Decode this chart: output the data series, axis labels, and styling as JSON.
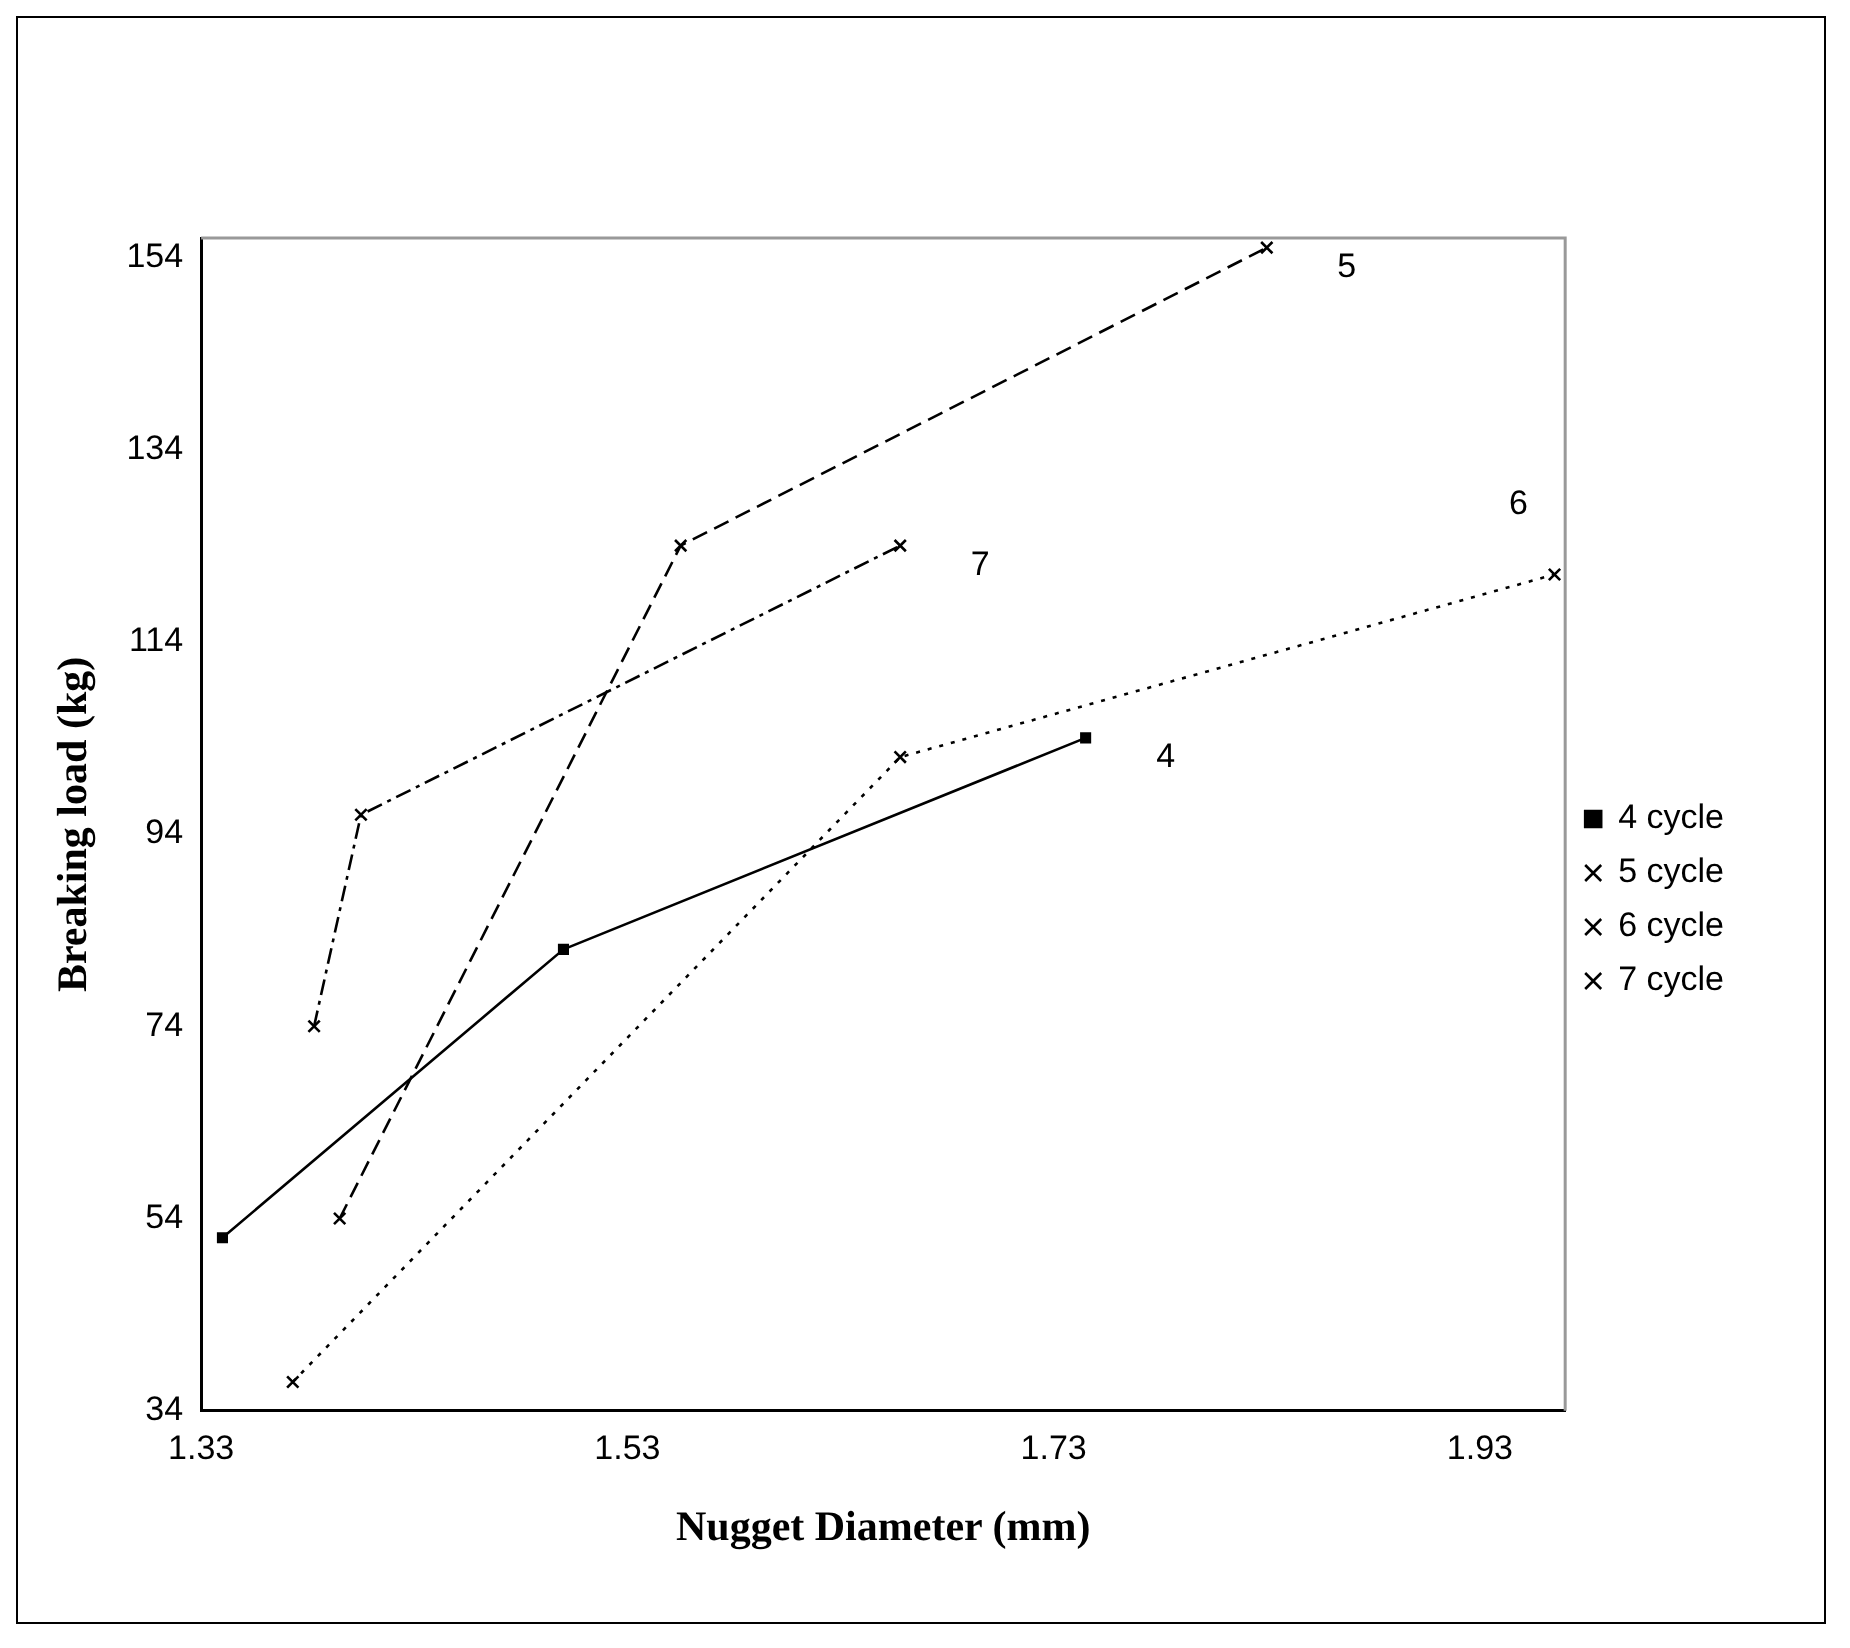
{
  "chart_data": {
    "type": "line",
    "xlabel": "Nugget Diameter (mm)",
    "ylabel": "Breaking load (kg)",
    "xlim": [
      1.33,
      1.97
    ],
    "xticks": [
      1.33,
      1.53,
      1.73,
      1.93
    ],
    "ylim": [
      34,
      156
    ],
    "yticks": [
      34,
      54,
      74,
      94,
      114,
      134,
      154
    ],
    "grid": false,
    "legend": "right",
    "series": [
      {
        "name": "4 cycle",
        "color": "#000000",
        "marker": "square",
        "line_style": "solid",
        "x": [
          1.34,
          1.5,
          1.745
        ],
        "values": [
          52,
          82,
          104
        ]
      },
      {
        "name": "5 cycle",
        "color": "#000000",
        "marker": "cross",
        "line_style": "dashed",
        "x": [
          1.395,
          1.555,
          1.83
        ],
        "values": [
          54,
          124,
          155
        ]
      },
      {
        "name": "6 cycle",
        "color": "#000000",
        "marker": "cross",
        "line_style": "dotted",
        "x": [
          1.373,
          1.658,
          1.965
        ],
        "values": [
          37,
          102,
          121
        ]
      },
      {
        "name": "7 cycle",
        "color": "#000000",
        "marker": "cross",
        "line_style": "dashdot",
        "x": [
          1.383,
          1.405,
          1.658
        ],
        "values": [
          74,
          96,
          124
        ]
      }
    ],
    "annotations": [
      "4",
      "5",
      "6",
      "7"
    ]
  }
}
